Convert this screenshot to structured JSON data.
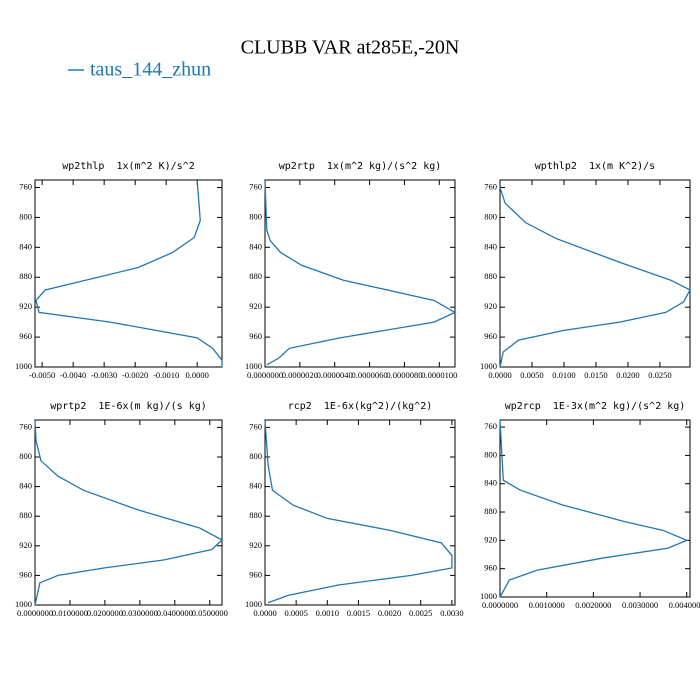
{
  "title": "CLUBB VAR at285E,-20N",
  "legend": [
    {
      "name": "taus_144_zhun",
      "color": "#1f77b4"
    }
  ],
  "chart_data": [
    {
      "type": "line",
      "title": "wp2thlp  1x(m^2 K)/s^2",
      "color": "#1f77b4",
      "y": [
        751,
        804,
        827,
        847,
        867,
        897,
        911,
        927,
        940,
        961,
        975,
        991,
        1000
      ],
      "values": [
        0.0,
        0.0001,
        -0.0001,
        -0.0008,
        -0.0019,
        -0.0049,
        -0.0052,
        -0.0051,
        -0.0028,
        0.0,
        0.0005,
        0.0008,
        0.0008
      ],
      "xlim": [
        -0.00523,
        0.0008
      ],
      "xticks": [
        {
          "value": -0.005,
          "label": "-0.0050"
        },
        {
          "value": -0.004,
          "label": "-0.0040"
        },
        {
          "value": -0.003,
          "label": "-0.0030"
        },
        {
          "value": -0.002,
          "label": "-0.0020"
        },
        {
          "value": -0.001,
          "label": "-0.0010"
        },
        {
          "value": 0,
          "label": "0.0000"
        }
      ],
      "ylim": [
        1000,
        750
      ],
      "yticks": [
        760,
        800,
        840,
        880,
        920,
        960,
        1000
      ]
    },
    {
      "type": "line",
      "title": "wp2rtp  1x(m^2 kg)/(s^2 kg)",
      "color": "#1f77b4",
      "y": [
        751,
        817,
        831,
        847,
        864,
        884,
        911,
        927,
        940,
        961,
        975,
        988,
        997
      ],
      "values": [
        0.0,
        1e-07,
        3e-07,
        9e-07,
        2.1e-06,
        4.5e-06,
        9.7e-06,
        1.09e-05,
        9.7e-06,
        4.3e-06,
        1.4e-06,
        8e-07,
        1e-07
      ],
      "xlim": [
        0,
        1.09e-05
      ],
      "xticks": [
        {
          "value": 0,
          "label": "0.0000000"
        },
        {
          "value": 2e-06,
          "label": "0.0000020"
        },
        {
          "value": 4e-06,
          "label": "0.0000040"
        },
        {
          "value": 6e-06,
          "label": "0.0000060"
        },
        {
          "value": 8e-06,
          "label": "0.0000080"
        },
        {
          "value": 1e-05,
          "label": "0.0000100"
        }
      ],
      "ylim": [
        1000,
        750
      ],
      "yticks": [
        760,
        800,
        840,
        880,
        920,
        960,
        1000
      ]
    },
    {
      "type": "line",
      "title": "wpthlp2  1x(m K^2)/s",
      "color": "#1f77b4",
      "y": [
        760,
        781,
        807,
        828,
        860,
        884,
        897,
        913,
        927,
        940,
        951,
        964,
        980,
        1000
      ],
      "values": [
        0.0,
        0.0008,
        0.004,
        0.0087,
        0.0187,
        0.0267,
        0.0297,
        0.0287,
        0.0259,
        0.0187,
        0.01,
        0.0029,
        0.0005,
        0.0
      ],
      "xlim": [
        0,
        0.0297
      ],
      "xticks": [
        {
          "value": 0,
          "label": "0.0000"
        },
        {
          "value": 0.005,
          "label": "0.0050"
        },
        {
          "value": 0.01,
          "label": "0.0100"
        },
        {
          "value": 0.015,
          "label": "0.0150"
        },
        {
          "value": 0.02,
          "label": "0.0200"
        },
        {
          "value": 0.025,
          "label": "0.0250"
        }
      ],
      "ylim": [
        1000,
        750
      ],
      "yticks": [
        760,
        800,
        840,
        880,
        920,
        960,
        1000
      ]
    },
    {
      "type": "line",
      "title": "wprtp2  1E-6x(m kg)/(s kg)",
      "color": "#1f77b4",
      "y": [
        751,
        778,
        805,
        826,
        845,
        872,
        896,
        912,
        925,
        939,
        950,
        960,
        970,
        1000
      ],
      "values": [
        0.0,
        0.0003,
        0.0017,
        0.0066,
        0.0139,
        0.0298,
        0.0471,
        0.0535,
        0.0506,
        0.037,
        0.0197,
        0.0066,
        0.0014,
        0.0
      ],
      "xlim": [
        0,
        0.0535
      ],
      "xticks": [
        {
          "value": 0,
          "label": "0.0000000"
        },
        {
          "value": 0.01,
          "label": "0.0100000"
        },
        {
          "value": 0.02,
          "label": "0.0200000"
        },
        {
          "value": 0.03,
          "label": "0.0300000"
        },
        {
          "value": 0.04,
          "label": "0.0400000"
        },
        {
          "value": 0.05,
          "label": "0.0500000"
        }
      ],
      "ylim": [
        1000,
        750
      ],
      "yticks": [
        760,
        800,
        840,
        880,
        920,
        960,
        1000
      ]
    },
    {
      "type": "line",
      "title": "rcp2  1E-6x(kg^2)/(kg^2)",
      "color": "#1f77b4",
      "y": [
        751,
        811,
        845,
        865,
        883,
        899,
        916,
        933,
        950,
        960,
        973,
        987,
        997
      ],
      "values": [
        0.0,
        5e-05,
        0.00012,
        0.00045,
        0.001,
        0.002,
        0.00283,
        0.003,
        0.003,
        0.00235,
        0.00118,
        0.00037,
        5e-05
      ],
      "xlim": [
        0,
        0.00305
      ],
      "xticks": [
        {
          "value": 0,
          "label": "0.0000"
        },
        {
          "value": 0.0005,
          "label": "0.0005"
        },
        {
          "value": 0.001,
          "label": "0.0010"
        },
        {
          "value": 0.0015,
          "label": "0.0015"
        },
        {
          "value": 0.002,
          "label": "0.0020"
        },
        {
          "value": 0.0025,
          "label": "0.0025"
        },
        {
          "value": 0.003,
          "label": "0.0030"
        }
      ],
      "ylim": [
        1000,
        750
      ],
      "yticks": [
        760,
        800,
        840,
        880,
        920,
        960,
        1000
      ]
    },
    {
      "type": "line",
      "title": "wp2rcp  1E-3x(m^2 kg)/(s^2 kg)",
      "color": "#1f77b4",
      "y": [
        750,
        835,
        849,
        870,
        894,
        906,
        920,
        931,
        945,
        962,
        976,
        1000
      ],
      "values": [
        0.0,
        7e-05,
        0.00043,
        0.00134,
        0.0027,
        0.0035,
        0.004,
        0.0036,
        0.0022,
        0.0008,
        0.0002,
        0.0
      ],
      "xlim": [
        0,
        0.00407
      ],
      "xticks": [
        {
          "value": 0,
          "label": "0.0000000"
        },
        {
          "value": 0.001,
          "label": "0.0010000"
        },
        {
          "value": 0.002,
          "label": "0.0020000"
        },
        {
          "value": 0.003,
          "label": "0.0030000"
        },
        {
          "value": 0.004,
          "label": "0.0040000"
        }
      ],
      "ylim": [
        1000,
        750
      ],
      "yticks": [
        760,
        800,
        840,
        880,
        920,
        960,
        1000
      ]
    }
  ]
}
